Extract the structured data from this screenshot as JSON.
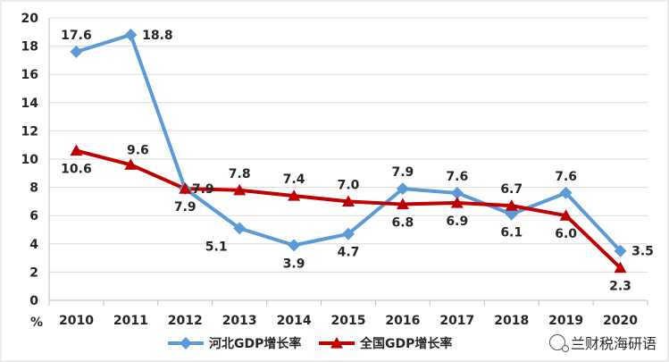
{
  "chart_data": {
    "type": "line",
    "categories": [
      "2010",
      "2011",
      "2012",
      "2013",
      "2014",
      "2015",
      "2016",
      "2017",
      "2018",
      "2019",
      "2020"
    ],
    "series": [
      {
        "name": "河北GDP增长率",
        "values": [
          17.6,
          18.8,
          7.9,
          5.1,
          3.9,
          4.7,
          7.9,
          7.6,
          6.1,
          7.6,
          3.5
        ],
        "labels": [
          "17.6",
          "18.8",
          "7.9",
          "5.1",
          "3.9",
          "4.7",
          "7.9",
          "7.6",
          "6.1",
          "7.6",
          "3.5"
        ],
        "color": "#5B9BD5",
        "marker": "diamond"
      },
      {
        "name": "全国GDP增长率",
        "values": [
          10.6,
          9.6,
          7.9,
          7.8,
          7.4,
          7.0,
          6.8,
          6.9,
          6.7,
          6.0,
          2.3
        ],
        "labels": [
          "10.6",
          "9.6",
          "7.9",
          "7.8",
          "7.4",
          "7.0",
          "6.8",
          "6.9",
          "6.7",
          "6.0",
          "2.3"
        ],
        "color": "#C00000",
        "marker": "triangle"
      }
    ],
    "ylim": [
      0,
      20
    ],
    "yticks": [
      "0",
      "2",
      "4",
      "6",
      "8",
      "10",
      "12",
      "14",
      "16",
      "18",
      "20"
    ],
    "yunit": "%",
    "grid": true,
    "legend_position": "bottom"
  },
  "watermark": {
    "text": "兰财税海研语",
    "icon": "wechat-icon"
  }
}
